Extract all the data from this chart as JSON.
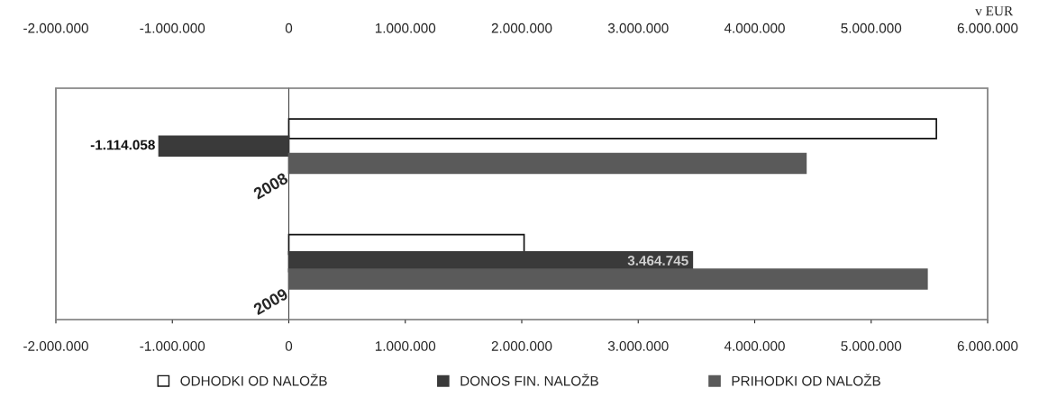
{
  "chart_data": {
    "type": "bar",
    "orientation": "horizontal",
    "categories": [
      "2008",
      "2009"
    ],
    "series": [
      {
        "name": "ODHODKI OD NALOŽB",
        "color": "#ffffff",
        "values": [
          5560000,
          2020000
        ]
      },
      {
        "name": "DONOS FIN. NALOŽB",
        "color": "#3a3a3a",
        "values": [
          -1114058,
          3464745
        ],
        "value_labels": [
          "-1.114.058",
          "3.464.745"
        ]
      },
      {
        "name": "PRIHODKI OD NALOŽB",
        "color": "#5a5a5a",
        "values": [
          4440000,
          5480000
        ]
      }
    ],
    "xlim": [
      -2000000,
      6000000
    ],
    "xticks": [
      {
        "value": -2000000,
        "label": "-2.000.000"
      },
      {
        "value": -1000000,
        "label": "-1.000.000"
      },
      0,
      {
        "value": 1000000,
        "label": "1.000.000"
      },
      {
        "value": 2000000,
        "label": "2.000.000"
      },
      {
        "value": 3000000,
        "label": "3.000.000"
      },
      {
        "value": 4000000,
        "label": "4.000.000"
      },
      {
        "value": 5000000,
        "label": "5.000.000"
      },
      {
        "value": 6000000,
        "label": "6.000.000"
      }
    ],
    "x2lim": [
      -2000000,
      6000000
    ],
    "x2ticks": [
      {
        "value": -2000000,
        "label": "-2.000.000"
      },
      {
        "value": -1000000,
        "label": "-1.000.000"
      },
      0,
      {
        "value": 1000000,
        "label": "1.000.000"
      },
      {
        "value": 2000000,
        "label": "2.000.000"
      },
      {
        "value": 3000000,
        "label": "3.000.000"
      },
      {
        "value": 4000000,
        "label": "4.000.000"
      },
      {
        "value": 5000000,
        "label": "5.000.000"
      },
      {
        "value": 6000000,
        "label": "6.000.000"
      }
    ],
    "annotations": [
      "v EUR"
    ],
    "legend": "bottom",
    "grid": false
  }
}
